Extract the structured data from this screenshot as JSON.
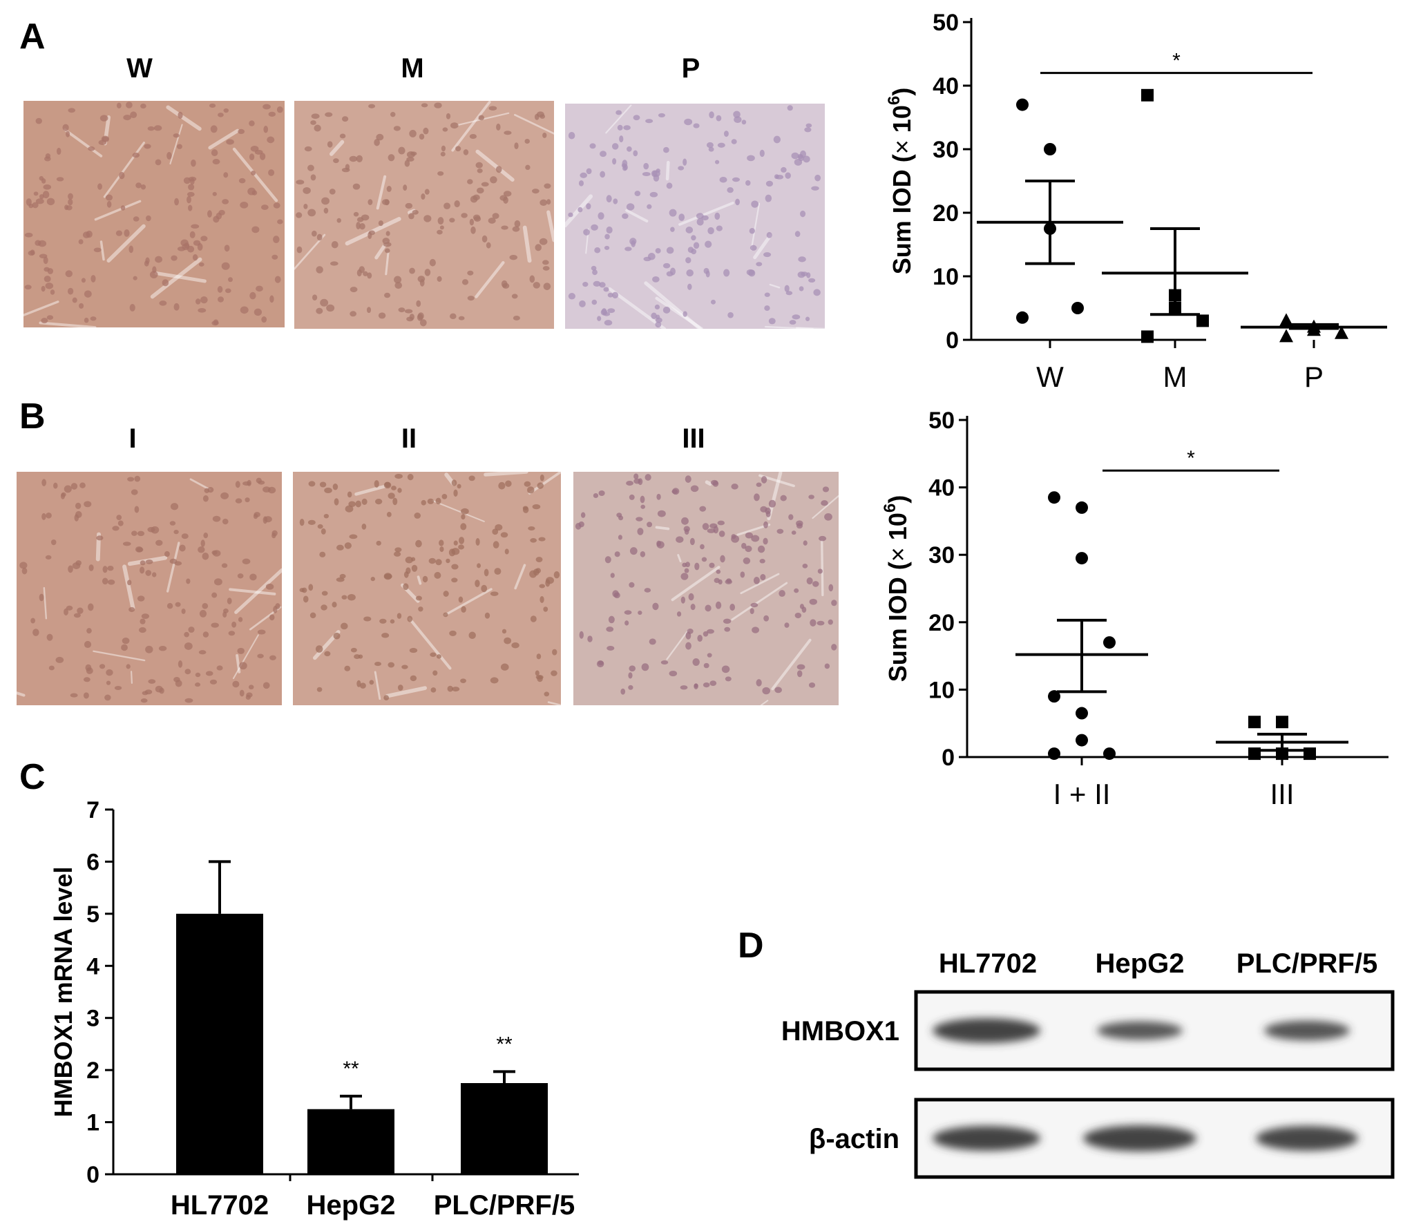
{
  "panels": {
    "A": {
      "letter": "A",
      "image_headers": [
        "W",
        "M",
        "P"
      ],
      "micrographs": [
        {
          "name": "W",
          "bg": "#c89a86",
          "cell": "#a97468"
        },
        {
          "name": "M",
          "bg": "#cfa797",
          "cell": "#a67569"
        },
        {
          "name": "P",
          "bg": "#d8cad7",
          "cell": "#a890b5"
        }
      ],
      "chart_data": {
        "type": "scatter",
        "categories": [
          "W",
          "M",
          "P"
        ],
        "ylabel_main": "Sum IOD (",
        "ylabel_sym": "×",
        "ylabel_base": "10",
        "ylabel_exp": "6",
        "ylabel_close": ")",
        "ylim": [
          0,
          50
        ],
        "yticks": [
          "0",
          "10",
          "20",
          "30",
          "40",
          "50"
        ],
        "markers": [
          "circle",
          "square",
          "triangle"
        ],
        "series": [
          {
            "category": "W",
            "points": [
              37,
              30,
              17.5,
              5,
              3.5
            ],
            "mean": 18.5,
            "sem_low": 12,
            "sem_high": 25
          },
          {
            "category": "M",
            "points": [
              38.5,
              7,
              5,
              3,
              0.5
            ],
            "mean": 10.5,
            "sem_low": 4,
            "sem_high": 17.5
          },
          {
            "category": "P",
            "points": [
              3,
              2,
              1.5,
              1,
              0.5
            ],
            "mean": 2,
            "sem_low": 1.8,
            "sem_high": 2.4
          }
        ],
        "significance": {
          "from": "W",
          "to": "P",
          "label": "*",
          "y": 42
        }
      }
    },
    "B": {
      "letter": "B",
      "image_headers": [
        "I",
        "II",
        "III"
      ],
      "micrographs": [
        {
          "name": "I",
          "bg": "#c99b89",
          "cell": "#a57366"
        },
        {
          "name": "II",
          "bg": "#cda494",
          "cell": "#a0705f"
        },
        {
          "name": "III",
          "bg": "#cfb6b1",
          "cell": "#9a6f82"
        }
      ],
      "chart_data": {
        "type": "scatter",
        "categories": [
          "I + II",
          "III"
        ],
        "ylabel_main": "Sum IOD (",
        "ylabel_sym": "×",
        "ylabel_base": "10",
        "ylabel_exp": "6",
        "ylabel_close": ")",
        "ylim": [
          0,
          50
        ],
        "yticks": [
          "0",
          "10",
          "20",
          "30",
          "40",
          "50"
        ],
        "markers": [
          "circle",
          "square"
        ],
        "series": [
          {
            "category": "I + II",
            "points": [
              38.5,
              37,
              29.5,
              17,
              9,
              6.5,
              2.5,
              0.5,
              0.5
            ],
            "mean": 15.2,
            "sem_low": 9.7,
            "sem_high": 20.3
          },
          {
            "category": "III",
            "points": [
              5.2,
              5.2,
              0.5,
              0.5,
              0.5
            ],
            "mean": 2.2,
            "sem_low": 1,
            "sem_high": 3.4
          }
        ],
        "significance": {
          "from": "I + II",
          "to": "III",
          "label": "*",
          "y": 42.5
        }
      }
    },
    "C": {
      "letter": "C",
      "chart_data": {
        "type": "bar",
        "categories": [
          "HL7702",
          "HepG2",
          "PLC/PRF/5"
        ],
        "values": [
          5,
          1.25,
          1.75
        ],
        "errors": [
          1,
          0.25,
          0.22
        ],
        "annotations": [
          "",
          "**",
          "**"
        ],
        "ylabel": "HMBOX1  mRNA  level",
        "ylim": [
          0,
          7
        ],
        "yticks": [
          "0",
          "1",
          "2",
          "3",
          "4",
          "5",
          "6",
          "7"
        ]
      }
    },
    "D": {
      "letter": "D",
      "lanes": [
        "HL7702",
        "HepG2",
        "PLC/PRF/5"
      ],
      "rows": [
        {
          "label": "HMBOX1",
          "intensity": [
            1.0,
            0.72,
            0.75
          ],
          "thickness": [
            1.0,
            0.75,
            0.8
          ]
        },
        {
          "label": "β-actin",
          "intensity": [
            1.0,
            1.0,
            0.95
          ],
          "thickness": [
            1.0,
            1.05,
            1.0
          ]
        }
      ]
    }
  }
}
